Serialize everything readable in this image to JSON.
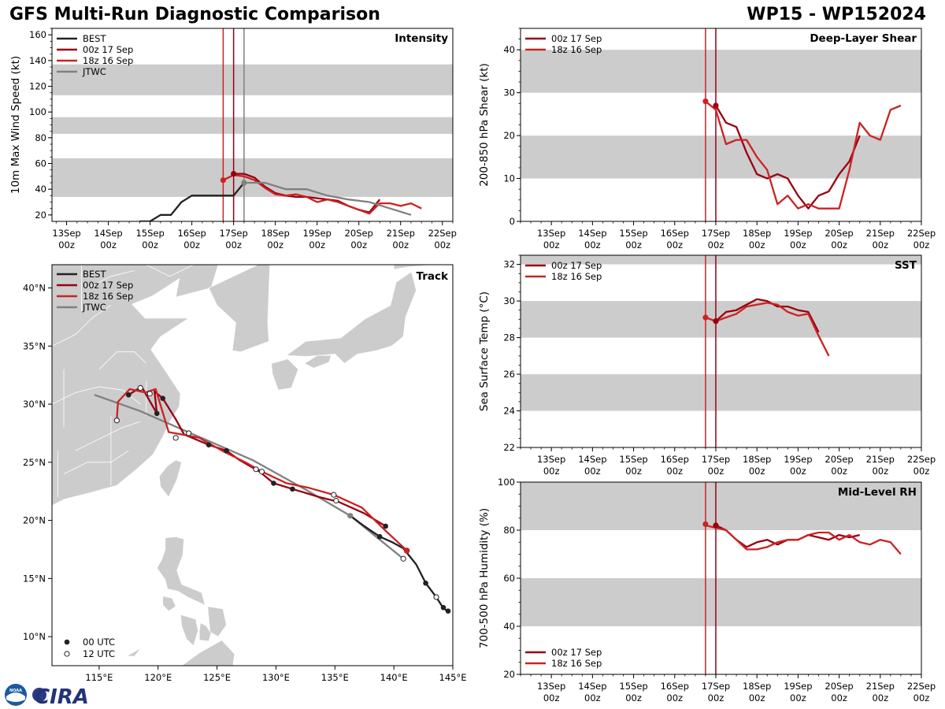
{
  "header": {
    "title_left": "GFS Multi-Run Diagnostic Comparison",
    "title_right": "WP15 - WP152024",
    "logo_text": "CIRA",
    "logo_seal_text": "NOAA"
  },
  "colors": {
    "best": "#222222",
    "run_00z_17": "#990011",
    "run_18z_16": "#cc2222",
    "jtwc": "#808080",
    "band": "#cccccc",
    "land": "#cccccc"
  },
  "time_axis": {
    "ticks": [
      {
        "day": "13Sep",
        "hour": "00z",
        "t": 0
      },
      {
        "day": "14Sep",
        "hour": "00z",
        "t": 1
      },
      {
        "day": "15Sep",
        "hour": "00z",
        "t": 2
      },
      {
        "day": "16Sep",
        "hour": "00z",
        "t": 3
      },
      {
        "day": "17Sep",
        "hour": "00z",
        "t": 4
      },
      {
        "day": "18Sep",
        "hour": "00z",
        "t": 5
      },
      {
        "day": "19Sep",
        "hour": "00z",
        "t": 6
      },
      {
        "day": "20Sep",
        "hour": "00z",
        "t": 7
      },
      {
        "day": "21Sep",
        "hour": "00z",
        "t": 8
      },
      {
        "day": "22Sep",
        "hour": "00z",
        "t": 9
      }
    ],
    "note": "t is days since 13 Sep 00z"
  },
  "chart_data": [
    {
      "id": "intensity",
      "type": "line",
      "title": "Intensity",
      "ylabel": "10m Max Wind Speed (kt)",
      "xlim": [
        -0.35,
        9.25
      ],
      "ylim": [
        15,
        165
      ],
      "yticks": [
        20,
        40,
        60,
        80,
        100,
        120,
        140,
        160
      ],
      "bands": [
        [
          34,
          64
        ],
        [
          83,
          96
        ],
        [
          113,
          137
        ]
      ],
      "vlines": [
        {
          "t": 3.75,
          "series": "run_18z_16"
        },
        {
          "t": 4.0,
          "series": "run_00z_17"
        },
        {
          "t": 4.25,
          "series": "jtwc"
        }
      ],
      "legend": [
        "BEST",
        "00z 17 Sep",
        "18z 16 Sep",
        "JTWC"
      ],
      "legend_keys": [
        "best",
        "run_00z_17",
        "run_18z_16",
        "jtwc"
      ],
      "series": [
        {
          "name": "BEST",
          "key": "best",
          "t": [
            1.75,
            2.0,
            2.25,
            2.5,
            2.75,
            3.0,
            3.25,
            3.5,
            3.75,
            4.0,
            4.25
          ],
          "values": [
            15,
            15,
            20,
            20,
            30,
            35,
            35,
            35,
            35,
            35,
            45
          ]
        },
        {
          "name": "00z 17 Sep",
          "key": "run_00z_17",
          "t": [
            4.0,
            4.25,
            4.5,
            4.75,
            5.0,
            5.25,
            5.5,
            5.75,
            6.0,
            6.25,
            6.5,
            6.75,
            7.0,
            7.25,
            7.5
          ],
          "values": [
            52,
            52,
            49,
            42,
            37,
            35,
            34,
            34,
            33,
            32,
            31,
            27,
            24,
            22,
            32
          ]
        },
        {
          "name": "18z 16 Sep",
          "key": "run_18z_16",
          "t": [
            3.75,
            4.0,
            4.25,
            4.5,
            4.75,
            5.0,
            5.25,
            5.5,
            5.75,
            6.0,
            6.25,
            6.5,
            6.75,
            7.0,
            7.25,
            7.5,
            7.75,
            8.0,
            8.25,
            8.5
          ],
          "values": [
            47,
            51,
            50,
            47,
            41,
            36,
            35,
            36,
            34,
            30,
            32,
            30,
            27,
            24,
            21,
            29,
            29,
            27,
            29,
            25
          ]
        },
        {
          "name": "JTWC",
          "key": "jtwc",
          "t": [
            4.25,
            4.75,
            5.25,
            5.75,
            6.25,
            6.75,
            7.25,
            7.75,
            8.25
          ],
          "values": [
            45,
            45,
            40,
            40,
            35,
            32,
            30,
            25,
            20
          ]
        }
      ],
      "start_markers": [
        {
          "key": "run_18z_16",
          "t": 3.75,
          "value": 47
        },
        {
          "key": "run_00z_17",
          "t": 4.0,
          "value": 52
        },
        {
          "key": "jtwc",
          "t": 4.25,
          "value": 45
        }
      ]
    },
    {
      "id": "shear",
      "type": "line",
      "title": "Deep-Layer Shear",
      "ylabel": "200-850 hPa Shear (kt)",
      "xlim": [
        -0.75,
        9.0
      ],
      "ylim": [
        0,
        45
      ],
      "yticks": [
        0,
        10,
        20,
        30,
        40
      ],
      "bands": [
        [
          10,
          20
        ],
        [
          30,
          40
        ]
      ],
      "vlines": [
        {
          "t": 3.75,
          "series": "run_18z_16"
        },
        {
          "t": 4.0,
          "series": "run_00z_17"
        }
      ],
      "legend": [
        "00z 17 Sep",
        "18z 16 Sep"
      ],
      "legend_keys": [
        "run_00z_17",
        "run_18z_16"
      ],
      "series": [
        {
          "name": "00z 17 Sep",
          "key": "run_00z_17",
          "t": [
            4.0,
            4.25,
            4.5,
            4.75,
            5.0,
            5.25,
            5.5,
            5.75,
            6.0,
            6.25,
            6.5,
            6.75,
            7.0,
            7.25,
            7.5
          ],
          "values": [
            27,
            23,
            22,
            16,
            11,
            10,
            11,
            10,
            6,
            3,
            6,
            7,
            11,
            14,
            20
          ]
        },
        {
          "name": "18z 16 Sep",
          "key": "run_18z_16",
          "t": [
            3.75,
            4.0,
            4.25,
            4.5,
            4.75,
            5.0,
            5.25,
            5.5,
            5.75,
            6.0,
            6.25,
            6.5,
            6.75,
            7.0,
            7.25,
            7.5,
            7.75,
            8.0,
            8.25,
            8.5
          ],
          "values": [
            28,
            26,
            18,
            19,
            19,
            15,
            12,
            4,
            6,
            3,
            4,
            3,
            3,
            3,
            12,
            23,
            20,
            19,
            26,
            27
          ]
        }
      ],
      "start_markers": [
        {
          "key": "run_18z_16",
          "t": 3.75,
          "value": 28
        },
        {
          "key": "run_00z_17",
          "t": 4.0,
          "value": 27
        }
      ]
    },
    {
      "id": "sst",
      "type": "line",
      "title": "SST",
      "ylabel": "Sea Surface Temp (°C)",
      "xlim": [
        -0.75,
        9.0
      ],
      "ylim": [
        22,
        32.5
      ],
      "yticks": [
        22,
        24,
        26,
        28,
        30,
        32
      ],
      "bands": [
        [
          24,
          26
        ],
        [
          28,
          30
        ],
        [
          32,
          32.5
        ]
      ],
      "vlines": [
        {
          "t": 3.75,
          "series": "run_18z_16"
        },
        {
          "t": 4.0,
          "series": "run_00z_17"
        }
      ],
      "legend": [
        "00z 17 Sep",
        "18z 16 Sep"
      ],
      "legend_keys": [
        "run_00z_17",
        "run_18z_16"
      ],
      "series": [
        {
          "name": "00z 17 Sep",
          "key": "run_00z_17",
          "t": [
            4.0,
            4.25,
            4.5,
            4.75,
            5.0,
            5.25,
            5.5,
            5.75,
            6.0,
            6.25,
            6.5
          ],
          "values": [
            28.9,
            29.4,
            29.5,
            29.8,
            30.1,
            30.0,
            29.7,
            29.7,
            29.5,
            29.4,
            28.3
          ]
        },
        {
          "name": "18z 16 Sep",
          "key": "run_18z_16",
          "t": [
            3.75,
            4.0,
            4.25,
            4.5,
            4.75,
            5.0,
            5.25,
            5.5,
            5.75,
            6.0,
            6.25,
            6.5,
            6.75
          ],
          "values": [
            29.1,
            28.9,
            29.1,
            29.3,
            29.7,
            29.8,
            29.9,
            29.8,
            29.4,
            29.2,
            29.3,
            28.1,
            27.0
          ]
        }
      ],
      "start_markers": [
        {
          "key": "run_18z_16",
          "t": 3.75,
          "value": 29.1
        },
        {
          "key": "run_00z_17",
          "t": 4.0,
          "value": 28.9
        }
      ]
    },
    {
      "id": "rh",
      "type": "line",
      "title": "Mid-Level RH",
      "ylabel": "700-500 hPa Humidity (%)",
      "xlim": [
        -0.75,
        9.0
      ],
      "ylim": [
        20,
        100
      ],
      "yticks": [
        20,
        40,
        60,
        80,
        100
      ],
      "bands": [
        [
          40,
          60
        ],
        [
          80,
          100
        ]
      ],
      "vlines": [
        {
          "t": 3.75,
          "series": "run_18z_16"
        },
        {
          "t": 4.0,
          "series": "run_00z_17"
        }
      ],
      "legend": [
        "00z 17 Sep",
        "18z 16 Sep"
      ],
      "legend_keys": [
        "run_00z_17",
        "run_18z_16"
      ],
      "series": [
        {
          "name": "00z 17 Sep",
          "key": "run_00z_17",
          "t": [
            4.0,
            4.25,
            4.5,
            4.75,
            5.0,
            5.25,
            5.5,
            5.75,
            6.0,
            6.25,
            6.5,
            6.75,
            7.0,
            7.25,
            7.5
          ],
          "values": [
            82,
            80,
            76,
            73,
            75,
            76,
            74,
            76,
            76,
            78,
            77,
            76,
            78,
            77,
            78
          ]
        },
        {
          "name": "18z 16 Sep",
          "key": "run_18z_16",
          "t": [
            3.75,
            4.0,
            4.25,
            4.5,
            4.75,
            5.0,
            5.25,
            5.5,
            5.75,
            6.0,
            6.25,
            6.5,
            6.75,
            7.0,
            7.25,
            7.5,
            7.75,
            8.0,
            8.25,
            8.5
          ],
          "values": [
            82,
            81,
            80,
            76,
            72,
            72,
            73,
            75,
            76,
            76,
            78,
            79,
            79,
            76,
            78,
            75,
            74,
            76,
            75,
            70
          ]
        }
      ],
      "start_markers": [
        {
          "key": "run_18z_16",
          "t": 3.75,
          "value": 82.5
        },
        {
          "key": "run_00z_17",
          "t": 4.0,
          "value": 82
        }
      ]
    },
    {
      "id": "track",
      "type": "scatter",
      "title": "Track",
      "xlim": [
        111,
        145
      ],
      "ylim": [
        7.5,
        42
      ],
      "xticks": [
        {
          "value": 115,
          "label": "115°E"
        },
        {
          "value": 120,
          "label": "120°E"
        },
        {
          "value": 125,
          "label": "125°E"
        },
        {
          "value": 130,
          "label": "130°E"
        },
        {
          "value": 135,
          "label": "135°E"
        },
        {
          "value": 140,
          "label": "140°E"
        },
        {
          "value": 145,
          "label": "145°E"
        }
      ],
      "yticks": [
        {
          "value": 10,
          "label": "10°N"
        },
        {
          "value": 15,
          "label": "15°N"
        },
        {
          "value": 20,
          "label": "20°N"
        },
        {
          "value": 25,
          "label": "25°N"
        },
        {
          "value": 30,
          "label": "30°N"
        },
        {
          "value": 35,
          "label": "35°N"
        },
        {
          "value": 40,
          "label": "40°N"
        }
      ],
      "legend": [
        "BEST",
        "00z 17 Sep",
        "18z 16 Sep",
        "JTWC"
      ],
      "legend_keys": [
        "best",
        "run_00z_17",
        "run_18z_16",
        "jtwc"
      ],
      "marker_legend": [
        "00 UTC",
        "12 UTC"
      ],
      "series": [
        {
          "name": "BEST",
          "key": "best",
          "lon": [
            144.6,
            144.4,
            144.1,
            143.6,
            142.7,
            141.9,
            140.8,
            139.9,
            138.8,
            137.5,
            136.3
          ],
          "lat": [
            12.2,
            12.3,
            12.6,
            13.4,
            14.6,
            16.2,
            17.6,
            18.1,
            18.6,
            19.5,
            20.4
          ],
          "marks": [
            {
              "lon": 144.6,
              "lat": 12.2,
              "kind": "00"
            },
            {
              "lon": 144.2,
              "lat": 12.5,
              "kind": "00"
            },
            {
              "lon": 143.6,
              "lat": 13.4,
              "kind": "12"
            },
            {
              "lon": 142.7,
              "lat": 14.6,
              "kind": "00"
            },
            {
              "lon": 138.8,
              "lat": 18.6,
              "kind": "00"
            }
          ]
        },
        {
          "name": "00z 17 Sep",
          "key": "run_00z_17",
          "lon": [
            139.3,
            137.5,
            135.3,
            133.7,
            131.4,
            129.8,
            128.6,
            126.9,
            125.8,
            124.3,
            122.2,
            121.5,
            120.4,
            119.7,
            119.9,
            118.6,
            117.5
          ],
          "lat": [
            19.5,
            20.6,
            21.6,
            22.0,
            22.7,
            23.2,
            24.2,
            25.2,
            26.0,
            26.5,
            27.4,
            28.7,
            30.5,
            31.1,
            29.2,
            31.5,
            30.8
          ],
          "marks": [
            {
              "lon": 139.3,
              "lat": 19.5,
              "kind": "00"
            },
            {
              "lon": 131.4,
              "lat": 22.7,
              "kind": "00"
            },
            {
              "lon": 129.8,
              "lat": 23.2,
              "kind": "00"
            },
            {
              "lon": 125.8,
              "lat": 26.0,
              "kind": "00"
            },
            {
              "lon": 124.3,
              "lat": 26.5,
              "kind": "00"
            },
            {
              "lon": 120.4,
              "lat": 30.5,
              "kind": "00"
            },
            {
              "lon": 119.9,
              "lat": 29.2,
              "kind": "00"
            },
            {
              "lon": 117.5,
              "lat": 30.8,
              "kind": "00"
            }
          ]
        },
        {
          "name": "18z 16 Sep",
          "key": "run_18z_16",
          "lon": [
            141.1,
            139.2,
            137.3,
            134.9,
            132.8,
            130.9,
            128.8,
            127.4,
            125.6,
            123.5,
            122.5,
            120.9,
            119.8,
            118.9,
            117.6,
            116.6,
            116.5
          ],
          "lat": [
            17.4,
            19.2,
            21.1,
            22.2,
            22.8,
            23.2,
            24.2,
            25.0,
            25.9,
            27.1,
            27.3,
            27.6,
            31.3,
            31.0,
            31.3,
            30.2,
            28.6
          ],
          "marks": [
            {
              "lon": 141.1,
              "lat": 17.4,
              "kind": "start"
            },
            {
              "lon": 134.9,
              "lat": 22.2,
              "kind": "12"
            },
            {
              "lon": 128.8,
              "lat": 24.2,
              "kind": "12"
            },
            {
              "lon": 121.5,
              "lat": 27.1,
              "kind": "12"
            },
            {
              "lon": 119.3,
              "lat": 30.9,
              "kind": "12"
            },
            {
              "lon": 118.5,
              "lat": 31.4,
              "kind": "12"
            },
            {
              "lon": 116.5,
              "lat": 28.6,
              "kind": "12"
            }
          ]
        },
        {
          "name": "JTWC",
          "key": "jtwc",
          "lon": [
            140.8,
            136.3,
            132.6,
            128.0,
            123.0,
            118.5,
            114.6
          ],
          "lat": [
            16.7,
            20.4,
            22.6,
            25.2,
            27.4,
            29.4,
            30.8
          ],
          "marks": [
            {
              "lon": 140.8,
              "lat": 16.7,
              "kind": "12"
            },
            {
              "lon": 136.3,
              "lat": 20.4,
              "kind": "jtwc"
            },
            {
              "lon": 135.1,
              "lat": 21.7,
              "kind": "12"
            },
            {
              "lon": 128.3,
              "lat": 24.4,
              "kind": "12"
            },
            {
              "lon": 122.6,
              "lat": 27.5,
              "kind": "12"
            }
          ]
        }
      ]
    }
  ]
}
